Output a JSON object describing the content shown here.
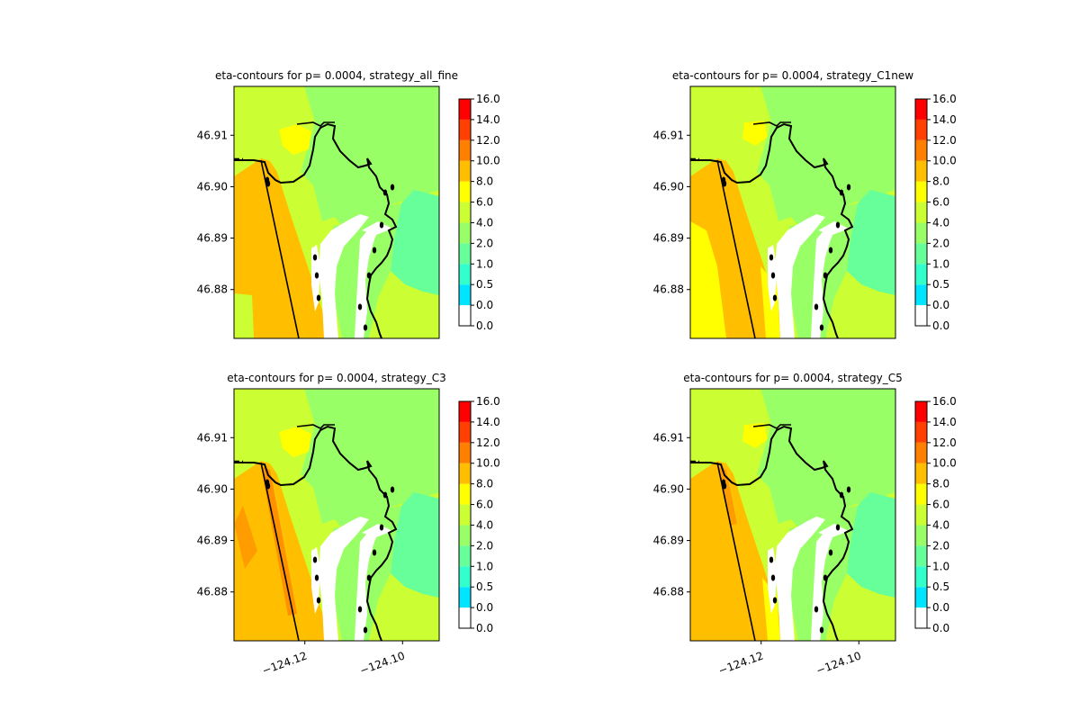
{
  "chart_data": [
    {
      "type": "heatmap",
      "title": "eta-contours for p= 0.0004, strategy_all_fine",
      "variant": "all_fine",
      "yticks": [
        46.91,
        46.9,
        46.89,
        46.88
      ],
      "ytick_labels": [
        "46.91",
        "46.90",
        "46.89",
        "46.88"
      ],
      "xticks": [],
      "xtick_labels": [],
      "xlim": [
        -124.1345,
        -124.0925
      ],
      "ylim": [
        46.8705,
        46.9195
      ],
      "colorbar": {
        "levels": [
          "0.0",
          "0.0",
          "0.5",
          "1.0",
          "2.0",
          "4.0",
          "6.0",
          "8.0",
          "10.0",
          "12.0",
          "14.0",
          "16.0"
        ],
        "colors": [
          "#ffffff",
          "#00e5ff",
          "#33ffcc",
          "#66ff99",
          "#99ff66",
          "#ccff33",
          "#ffff00",
          "#ffbf00",
          "#ff8000",
          "#ff4000",
          "#ff0000"
        ]
      }
    },
    {
      "type": "heatmap",
      "title": "eta-contours for p= 0.0004, strategy_C1new",
      "variant": "C1new",
      "yticks": [
        46.91,
        46.9,
        46.89,
        46.88
      ],
      "ytick_labels": [
        "46.91",
        "46.90",
        "46.89",
        "46.88"
      ],
      "xticks": [],
      "xtick_labels": [],
      "xlim": [
        -124.1345,
        -124.0925
      ],
      "ylim": [
        46.8705,
        46.9195
      ],
      "colorbar": {
        "levels": [
          "0.0",
          "0.0",
          "0.5",
          "1.0",
          "2.0",
          "4.0",
          "6.0",
          "8.0",
          "10.0",
          "12.0",
          "14.0",
          "16.0"
        ],
        "colors": [
          "#ffffff",
          "#00e5ff",
          "#33ffcc",
          "#66ff99",
          "#99ff66",
          "#ccff33",
          "#ffff00",
          "#ffbf00",
          "#ff8000",
          "#ff4000",
          "#ff0000"
        ]
      }
    },
    {
      "type": "heatmap",
      "title": "eta-contours for p= 0.0004, strategy_C3",
      "variant": "C3",
      "yticks": [
        46.91,
        46.9,
        46.89,
        46.88
      ],
      "ytick_labels": [
        "46.91",
        "46.90",
        "46.89",
        "46.88"
      ],
      "xticks": [
        -124.12,
        -124.1
      ],
      "xtick_labels": [
        "−124.12",
        "−124.10"
      ],
      "xlim": [
        -124.1345,
        -124.0925
      ],
      "ylim": [
        46.8705,
        46.9195
      ],
      "colorbar": {
        "levels": [
          "0.0",
          "0.0",
          "0.5",
          "1.0",
          "2.0",
          "4.0",
          "6.0",
          "8.0",
          "10.0",
          "12.0",
          "14.0",
          "16.0"
        ],
        "colors": [
          "#ffffff",
          "#00e5ff",
          "#33ffcc",
          "#66ff99",
          "#99ff66",
          "#ccff33",
          "#ffff00",
          "#ffbf00",
          "#ff8000",
          "#ff4000",
          "#ff0000"
        ]
      }
    },
    {
      "type": "heatmap",
      "title": "eta-contours for p= 0.0004, strategy_C5",
      "variant": "C5",
      "yticks": [
        46.91,
        46.9,
        46.89,
        46.88
      ],
      "ytick_labels": [
        "46.91",
        "46.90",
        "46.89",
        "46.88"
      ],
      "xticks": [
        -124.12,
        -124.1
      ],
      "xtick_labels": [
        "−124.12",
        "−124.10"
      ],
      "xlim": [
        -124.1345,
        -124.0925
      ],
      "ylim": [
        46.8705,
        46.9195
      ],
      "colorbar": {
        "levels": [
          "0.0",
          "0.0",
          "0.5",
          "1.0",
          "2.0",
          "4.0",
          "6.0",
          "8.0",
          "10.0",
          "12.0",
          "14.0",
          "16.0"
        ],
        "colors": [
          "#ffffff",
          "#00e5ff",
          "#33ffcc",
          "#66ff99",
          "#99ff66",
          "#ccff33",
          "#ffff00",
          "#ffbf00",
          "#ff8000",
          "#ff4000",
          "#ff0000"
        ]
      }
    }
  ]
}
